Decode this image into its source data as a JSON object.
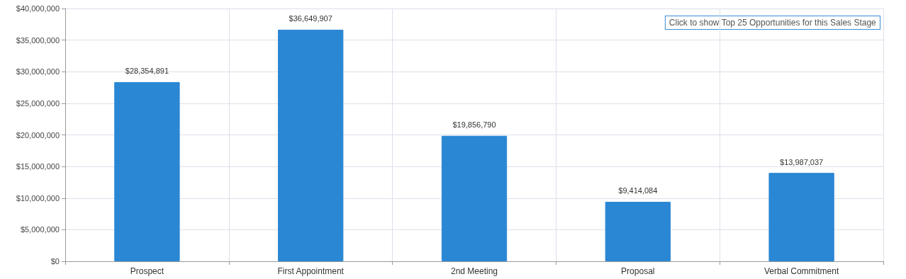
{
  "chart_data": {
    "type": "bar",
    "categories": [
      "Prospect",
      "First Appointment",
      "2nd Meeting",
      "Proposal",
      "Verbal Commitment"
    ],
    "values": [
      28354891,
      36649907,
      19856790,
      9414084,
      13987037
    ],
    "value_labels": [
      "$28,354,891",
      "$36,649,907",
      "$19,856,790",
      "$9,414,084",
      "$13,987,037"
    ],
    "color": "#2a87d3",
    "ylim": [
      0,
      40000000
    ],
    "yticks": [
      {
        "value": 0,
        "label": "$0"
      },
      {
        "value": 5000000,
        "label": "$5,000,000"
      },
      {
        "value": 10000000,
        "label": "$10,000,000"
      },
      {
        "value": 15000000,
        "label": "$15,000,000"
      },
      {
        "value": 20000000,
        "label": "$20,000,000"
      },
      {
        "value": 25000000,
        "label": "$25,000,000"
      },
      {
        "value": 30000000,
        "label": "$30,000,000"
      },
      {
        "value": 35000000,
        "label": "$35,000,000"
      },
      {
        "value": 40000000,
        "label": "$40,000,000"
      }
    ],
    "grid": true,
    "annotations": [
      "Click to show Top 25 Opportunities for this Sales Stage"
    ]
  }
}
